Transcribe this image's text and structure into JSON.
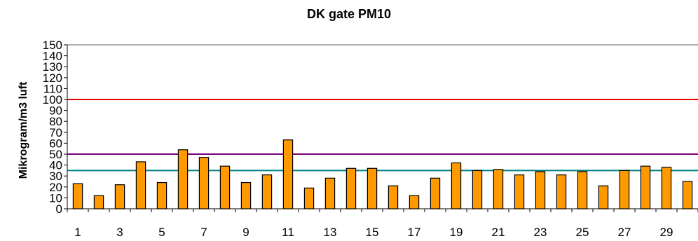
{
  "chart_data": {
    "type": "bar",
    "title": "DK gate PM10",
    "xlabel": "",
    "ylabel": "Mikrogram/m3 luft",
    "ylim": [
      0,
      150
    ],
    "y_ticks": [
      0,
      10,
      20,
      30,
      40,
      50,
      60,
      70,
      80,
      90,
      100,
      110,
      120,
      130,
      140,
      150
    ],
    "categories": [
      1,
      2,
      3,
      4,
      5,
      6,
      7,
      8,
      9,
      10,
      11,
      12,
      13,
      14,
      15,
      16,
      17,
      18,
      19,
      20,
      21,
      22,
      23,
      24,
      25,
      26,
      27,
      28,
      29,
      30
    ],
    "x_tick_labels": [
      "1",
      "3",
      "5",
      "7",
      "9",
      "11",
      "13",
      "15",
      "17",
      "19",
      "21",
      "23",
      "25",
      "27",
      "29"
    ],
    "values": [
      23,
      12,
      22,
      43,
      24,
      54,
      47,
      39,
      24,
      31,
      63,
      19,
      28,
      37,
      37,
      21,
      12,
      28,
      42,
      35,
      36,
      31,
      34,
      31,
      34,
      21,
      35,
      39,
      38,
      25
    ],
    "bar_color": "#FF9900",
    "reference_lines": [
      {
        "value": 100,
        "color": "#E00000"
      },
      {
        "value": 50,
        "color": "#7B007B"
      },
      {
        "value": 35,
        "color": "#008080"
      }
    ],
    "grid": false
  }
}
